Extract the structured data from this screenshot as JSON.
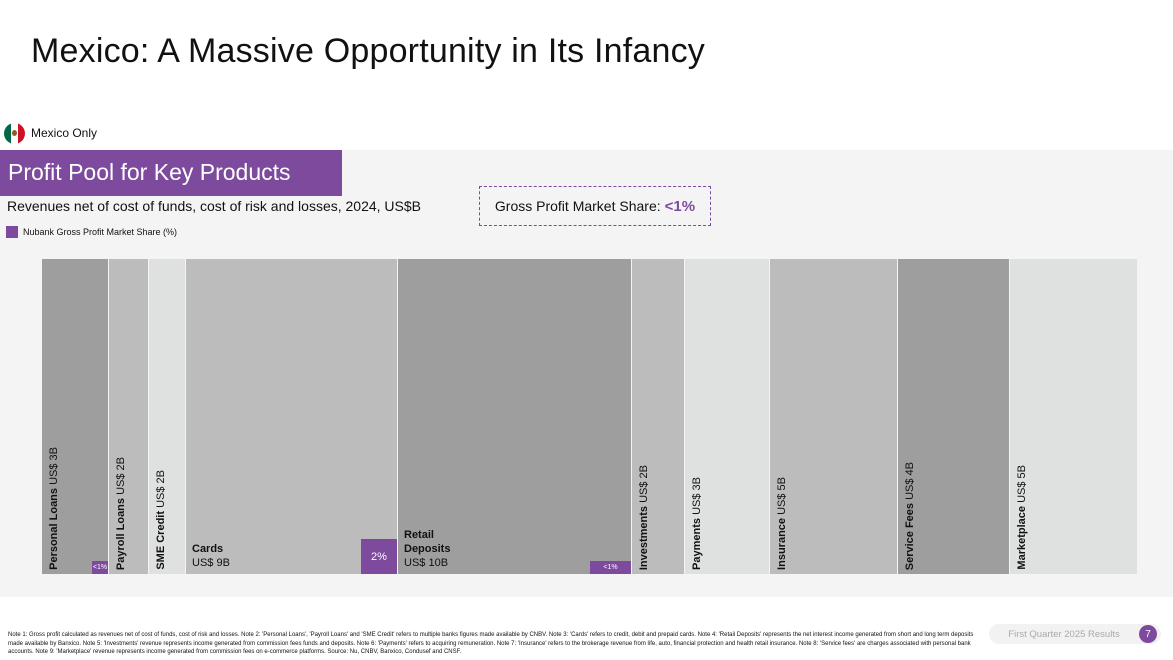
{
  "slide": {
    "title": "Mexico: A Massive Opportunity in Its Infancy",
    "country_label": "Mexico Only",
    "page_number": "7",
    "footer_text": "First Quarter 2025 Results"
  },
  "colors": {
    "accent": "#7d4a9e",
    "bar_dark": "#9e9e9e",
    "bar_mid": "#bcbcbc",
    "bar_light": "#dfe0e0"
  },
  "footnote": "Note 1: Gross profit calculated as revenues net of cost of funds, cost of risk and losses. Note 2: 'Personal Loans', 'Payroll Loans' and 'SME Credit' refers to multiple banks figures made available by CNBV. Note 3: 'Cards' refers to credit, debit and prepaid cards. Note 4: 'Retail Deposits' represents the net interest income generated from short and long term deposits made available by Banxico. Note 5: 'Investments' revenue represents income generated from commission fees funds and deposits. Note 6: 'Payments' refers to acquiring remuneration. Note 7: 'Insurance' refers to the brokerage revenue from life, auto, financial protection and health retail insurance. Note 8: 'Service fees' are charges associated with personal bank accounts. Note 9: 'Marketplace' revenue represents income generated from commission fees on e-commerce platforms. Source: Nu, CNBV, Banxico, Condusef and CNSF.",
  "chart_data": {
    "type": "bar",
    "title": "Profit Pool for Key Products",
    "subtitle": "Revenues net of cost of funds, cost of risk and losses, 2024, US$B",
    "legend": [
      "Nubank Gross Profit Market Share (%)"
    ],
    "callout": {
      "label": "Gross Profit Market Share:",
      "value": "<1%"
    },
    "categories": [
      "Personal Loans",
      "Payroll Loans",
      "SME Credit",
      "Cards",
      "Retail Deposits",
      "Investments",
      "Payments",
      "Insurance",
      "Service Fees",
      "Marketplace"
    ],
    "value_labels": [
      "US$ 3B",
      "US$ 2B",
      "US$ 2B",
      "US$ 9B",
      "US$ 10B",
      "US$ 2B",
      "US$ 3B",
      "US$ 5B",
      "US$ 4B",
      "US$ 5B"
    ],
    "values": [
      3,
      2,
      2,
      9,
      10,
      2,
      3,
      5,
      4,
      5
    ],
    "share_labels": [
      "<1%",
      null,
      null,
      "2%",
      "<1%",
      null,
      null,
      null,
      null,
      null
    ],
    "share_values": [
      0.05,
      null,
      null,
      0.1,
      0.05,
      null,
      null,
      null,
      null,
      null
    ],
    "shade": [
      "dark",
      "mid",
      "light",
      "mid",
      "dark",
      "mid",
      "light",
      "mid",
      "dark",
      "light"
    ],
    "label_orientation": [
      "vertical",
      "vertical",
      "vertical",
      "horizontal",
      "horizontal",
      "vertical",
      "vertical",
      "vertical",
      "vertical",
      "vertical"
    ]
  }
}
